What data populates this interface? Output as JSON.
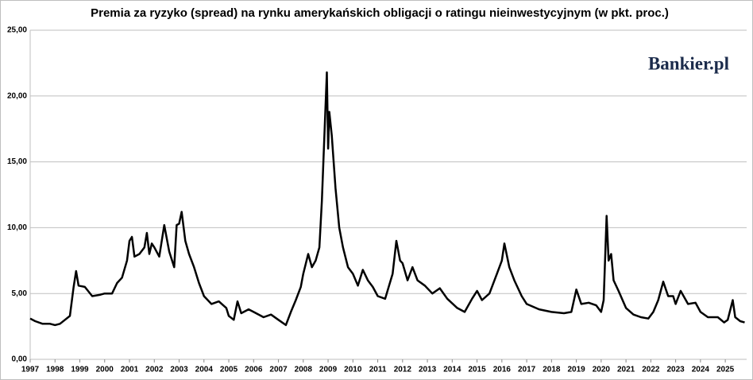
{
  "chart_data": {
    "type": "line",
    "title": "Premia za ryzyko (spread) na rynku amerykańskich obligacji o ratingu nieinwestycyjnym (w pkt. proc.)",
    "logo": "Bankier.pl",
    "x": [
      1997.0,
      1997.2,
      1997.5,
      1997.8,
      1998.0,
      1998.2,
      1998.4,
      1998.6,
      1998.75,
      1998.85,
      1998.95,
      1999.2,
      1999.5,
      1999.8,
      2000.0,
      2000.3,
      2000.5,
      2000.7,
      2000.9,
      2001.0,
      2001.1,
      2001.2,
      2001.4,
      2001.6,
      2001.7,
      2001.8,
      2001.9,
      2002.0,
      2002.2,
      2002.4,
      2002.6,
      2002.8,
      2002.9,
      2003.0,
      2003.1,
      2003.25,
      2003.4,
      2003.6,
      2003.8,
      2004.0,
      2004.3,
      2004.6,
      2004.9,
      2005.0,
      2005.2,
      2005.35,
      2005.5,
      2005.8,
      2006.0,
      2006.4,
      2006.7,
      2007.0,
      2007.3,
      2007.5,
      2007.7,
      2007.9,
      2008.0,
      2008.2,
      2008.35,
      2008.5,
      2008.65,
      2008.75,
      2008.85,
      2008.95,
      2009.0,
      2009.05,
      2009.15,
      2009.3,
      2009.45,
      2009.6,
      2009.8,
      2010.0,
      2010.2,
      2010.4,
      2010.6,
      2010.8,
      2011.0,
      2011.3,
      2011.6,
      2011.75,
      2011.9,
      2012.0,
      2012.2,
      2012.4,
      2012.6,
      2012.9,
      2013.2,
      2013.5,
      2013.8,
      2014.2,
      2014.5,
      2014.8,
      2015.0,
      2015.2,
      2015.5,
      2015.8,
      2016.0,
      2016.1,
      2016.3,
      2016.5,
      2016.8,
      2017.0,
      2017.5,
      2018.0,
      2018.5,
      2018.8,
      2019.0,
      2019.2,
      2019.5,
      2019.8,
      2020.0,
      2020.1,
      2020.22,
      2020.3,
      2020.4,
      2020.5,
      2020.7,
      2021.0,
      2021.3,
      2021.6,
      2021.9,
      2022.1,
      2022.3,
      2022.5,
      2022.7,
      2022.9,
      2023.0,
      2023.2,
      2023.5,
      2023.8,
      2024.0,
      2024.3,
      2024.7,
      2024.95,
      2025.1,
      2025.3,
      2025.4,
      2025.6,
      2025.78
    ],
    "values": [
      3.1,
      2.9,
      2.7,
      2.7,
      2.6,
      2.7,
      3.0,
      3.3,
      5.5,
      6.7,
      5.6,
      5.5,
      4.8,
      4.9,
      5.0,
      5.0,
      5.8,
      6.2,
      7.5,
      9.0,
      9.3,
      7.8,
      8.0,
      8.5,
      9.6,
      8.0,
      8.8,
      8.5,
      7.8,
      10.2,
      8.2,
      7.0,
      10.2,
      10.3,
      11.2,
      9.0,
      8.0,
      7.0,
      5.8,
      4.8,
      4.2,
      4.4,
      3.9,
      3.3,
      3.0,
      4.4,
      3.5,
      3.8,
      3.6,
      3.2,
      3.4,
      3.0,
      2.6,
      3.6,
      4.5,
      5.5,
      6.5,
      8.0,
      7.0,
      7.5,
      8.5,
      12,
      17,
      21.8,
      16.0,
      18.8,
      17.0,
      13,
      10,
      8.5,
      7.0,
      6.5,
      5.6,
      6.8,
      6.0,
      5.5,
      4.8,
      4.6,
      6.5,
      9.0,
      7.5,
      7.3,
      6.0,
      7.0,
      6.0,
      5.6,
      5.0,
      5.4,
      4.6,
      3.9,
      3.6,
      4.6,
      5.2,
      4.5,
      5.0,
      6.5,
      7.5,
      8.8,
      7.0,
      6.0,
      4.8,
      4.2,
      3.8,
      3.6,
      3.5,
      3.6,
      5.3,
      4.2,
      4.3,
      4.1,
      3.6,
      4.5,
      10.9,
      7.5,
      8.0,
      6.0,
      5.2,
      3.9,
      3.4,
      3.2,
      3.1,
      3.6,
      4.5,
      5.9,
      4.8,
      4.8,
      4.2,
      5.2,
      4.2,
      4.3,
      3.6,
      3.2,
      3.2,
      2.8,
      3.0,
      4.5,
      3.2,
      2.9,
      2.8
    ],
    "color": "#000000",
    "xlim": [
      1997,
      2025.86
    ],
    "xticks": [
      1997,
      1998,
      1999,
      2000,
      2001,
      2002,
      2003,
      2004,
      2005,
      2006,
      2007,
      2008,
      2009,
      2010,
      2011,
      2012,
      2013,
      2014,
      2015,
      2016,
      2017,
      2018,
      2019,
      2020,
      2021,
      2022,
      2023,
      2024,
      2025
    ],
    "ylim": [
      0,
      25
    ],
    "yticks": [
      {
        "value": 0,
        "label": "0,00"
      },
      {
        "value": 5,
        "label": "5,00"
      },
      {
        "value": 10,
        "label": "10,00"
      },
      {
        "value": 15,
        "label": "15,00"
      },
      {
        "value": 20,
        "label": "20,00"
      },
      {
        "value": 25,
        "label": "25,00"
      }
    ],
    "grid": true
  }
}
